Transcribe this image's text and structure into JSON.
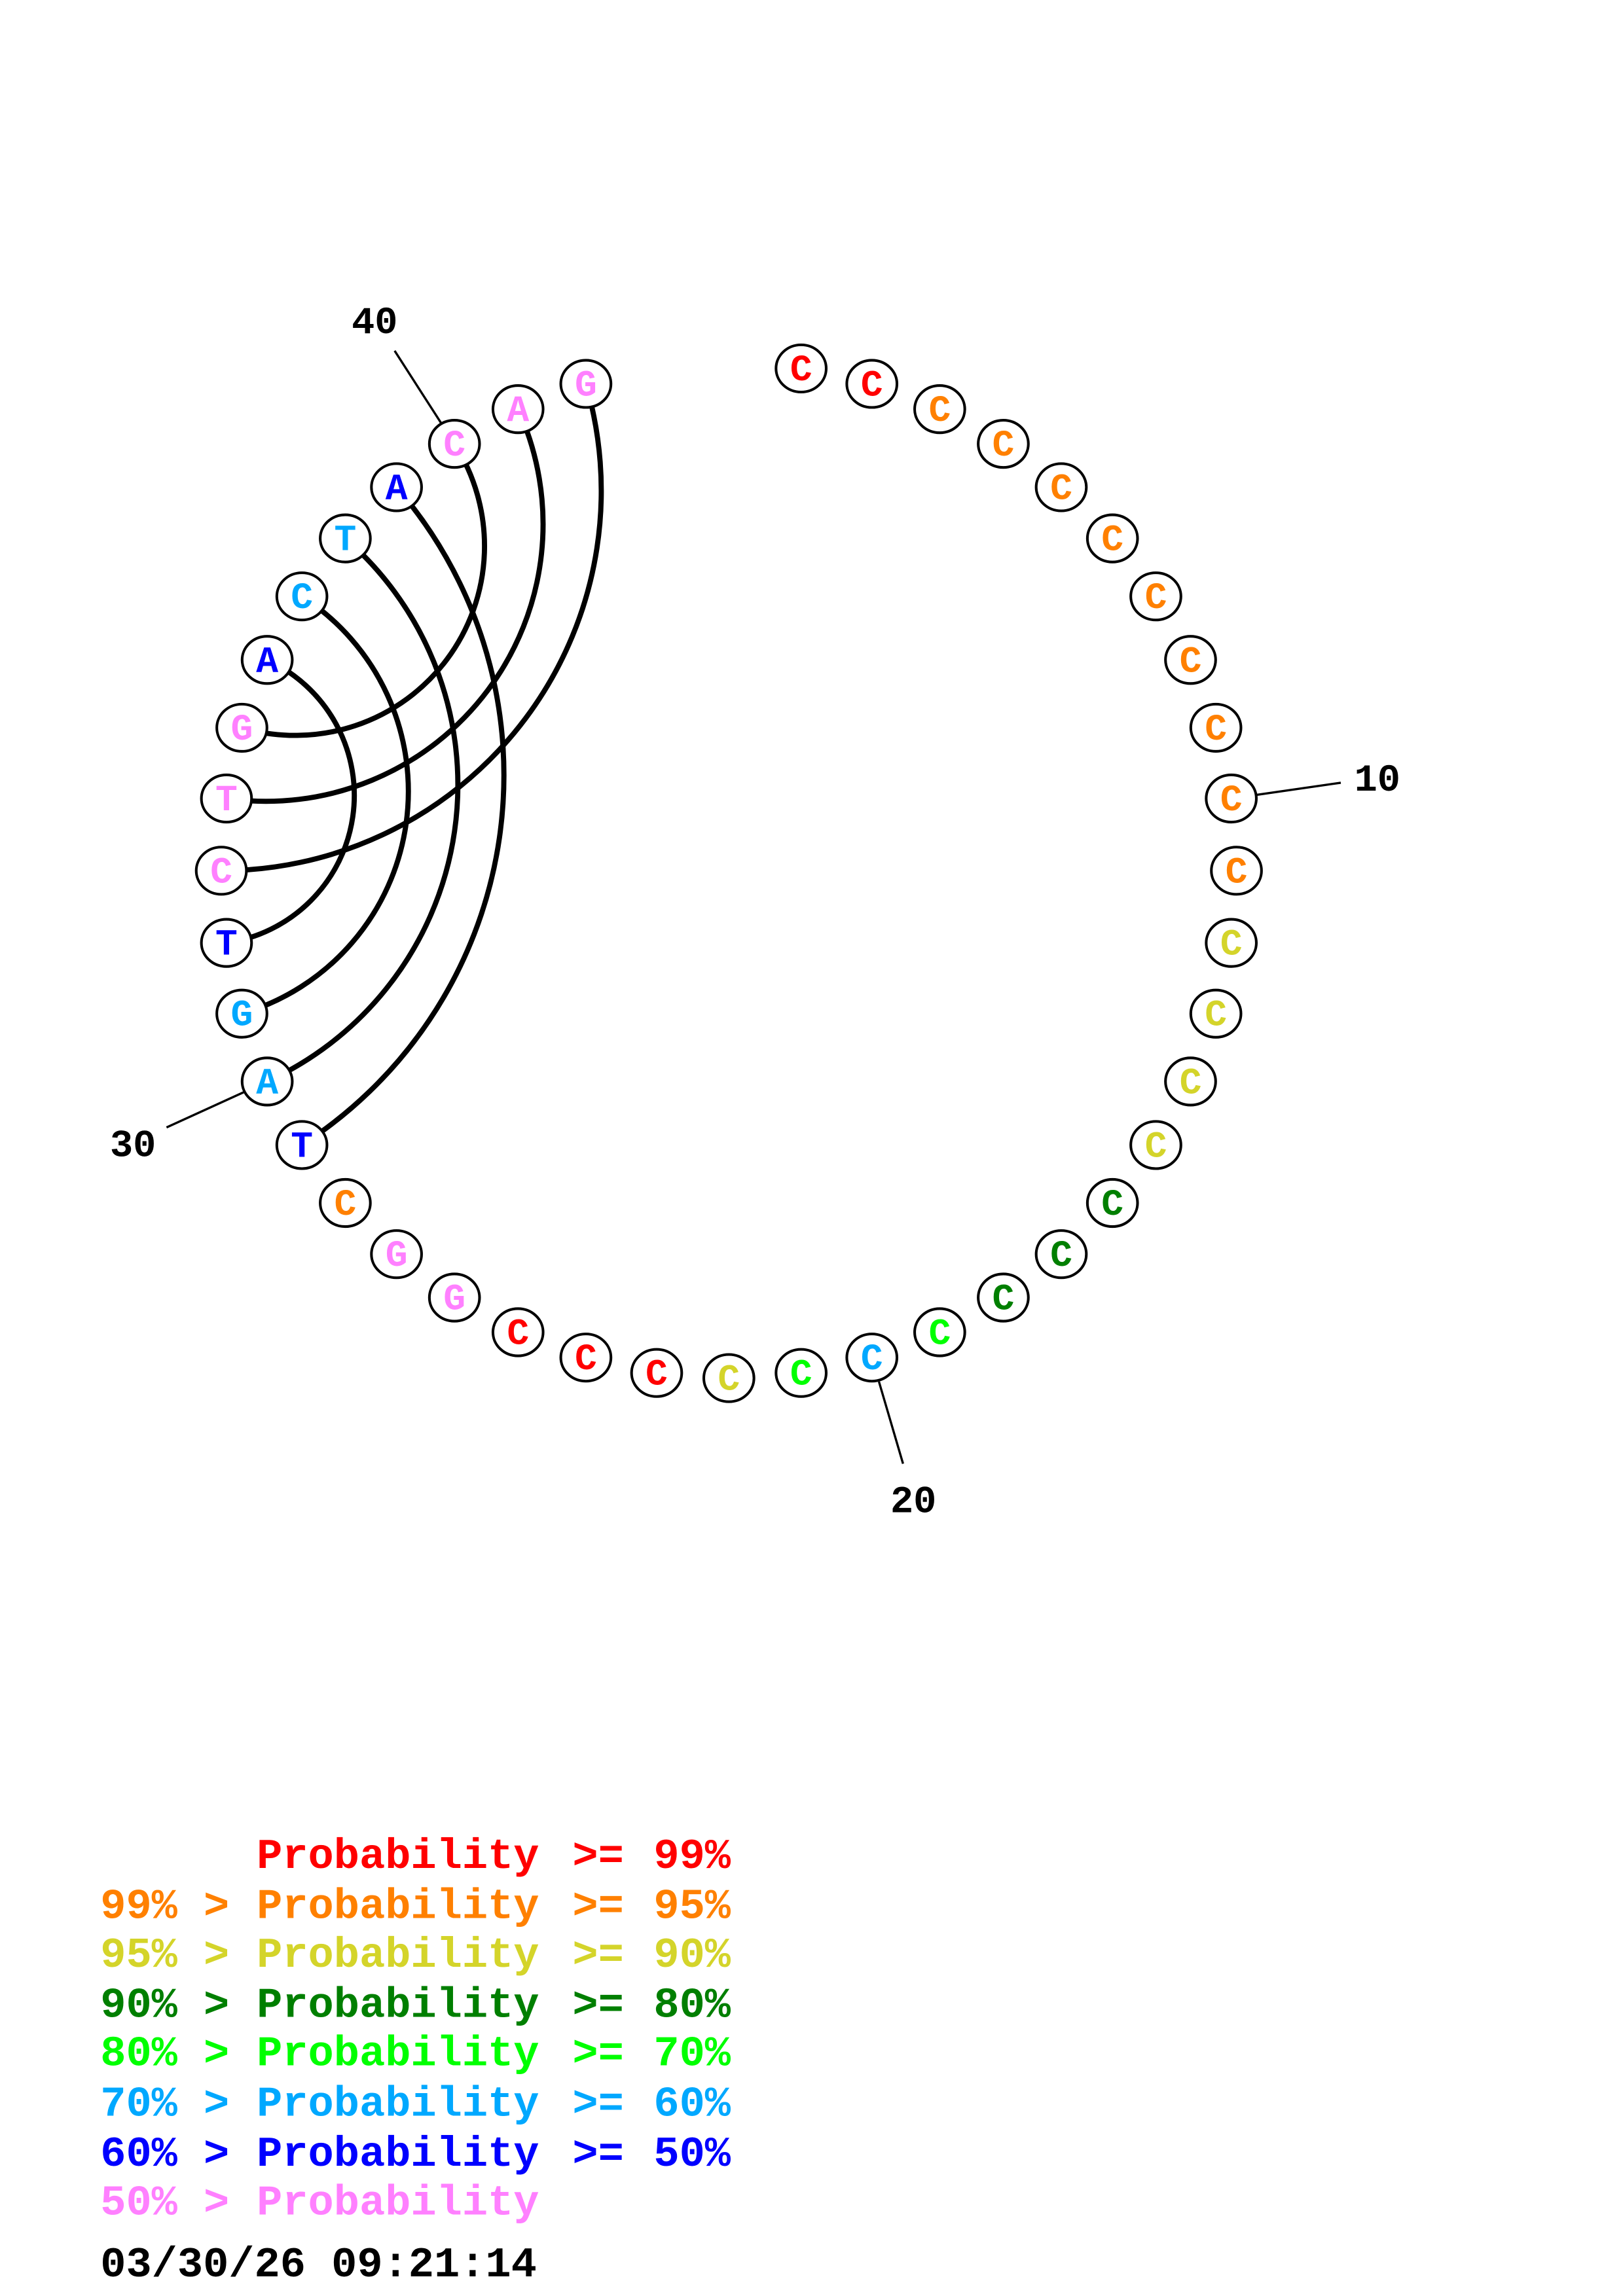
{
  "colors": {
    "p99": "#ff0000",
    "p95": "#ff8000",
    "p90": "#d4d42a",
    "p80": "#007f00",
    "p70": "#00ff00",
    "p60": "#00a8ff",
    "p50": "#0000ff",
    "plow": "#ff80ff"
  },
  "sequence": [
    {
      "base": "C",
      "prob": "p99"
    },
    {
      "base": "C",
      "prob": "p99"
    },
    {
      "base": "C",
      "prob": "p95"
    },
    {
      "base": "C",
      "prob": "p95"
    },
    {
      "base": "C",
      "prob": "p95"
    },
    {
      "base": "C",
      "prob": "p95"
    },
    {
      "base": "C",
      "prob": "p95"
    },
    {
      "base": "C",
      "prob": "p95"
    },
    {
      "base": "C",
      "prob": "p95"
    },
    {
      "base": "C",
      "prob": "p95"
    },
    {
      "base": "C",
      "prob": "p95"
    },
    {
      "base": "C",
      "prob": "p90"
    },
    {
      "base": "C",
      "prob": "p90"
    },
    {
      "base": "C",
      "prob": "p90"
    },
    {
      "base": "C",
      "prob": "p90"
    },
    {
      "base": "C",
      "prob": "p80"
    },
    {
      "base": "C",
      "prob": "p80"
    },
    {
      "base": "C",
      "prob": "p80"
    },
    {
      "base": "C",
      "prob": "p70"
    },
    {
      "base": "C",
      "prob": "p60"
    },
    {
      "base": "C",
      "prob": "p70"
    },
    {
      "base": "C",
      "prob": "p90"
    },
    {
      "base": "C",
      "prob": "p99"
    },
    {
      "base": "C",
      "prob": "p99"
    },
    {
      "base": "C",
      "prob": "p99"
    },
    {
      "base": "G",
      "prob": "plow"
    },
    {
      "base": "G",
      "prob": "plow"
    },
    {
      "base": "C",
      "prob": "p95"
    },
    {
      "base": "T",
      "prob": "p50"
    },
    {
      "base": "A",
      "prob": "p60"
    },
    {
      "base": "G",
      "prob": "p60"
    },
    {
      "base": "T",
      "prob": "p50"
    },
    {
      "base": "C",
      "prob": "plow"
    },
    {
      "base": "T",
      "prob": "plow"
    },
    {
      "base": "G",
      "prob": "plow"
    },
    {
      "base": "A",
      "prob": "p50"
    },
    {
      "base": "C",
      "prob": "p60"
    },
    {
      "base": "T",
      "prob": "p60"
    },
    {
      "base": "A",
      "prob": "p50"
    },
    {
      "base": "C",
      "prob": "plow"
    },
    {
      "base": "A",
      "prob": "plow"
    },
    {
      "base": "G",
      "prob": "plow"
    }
  ],
  "pairs": [
    [
      29,
      39
    ],
    [
      30,
      38
    ],
    [
      31,
      37
    ],
    [
      32,
      36
    ],
    [
      35,
      40
    ],
    [
      34,
      41
    ],
    [
      33,
      42
    ]
  ],
  "position_labels": [
    {
      "pos": 10,
      "text": "10"
    },
    {
      "pos": 20,
      "text": "20"
    },
    {
      "pos": 30,
      "text": "30"
    },
    {
      "pos": 40,
      "text": "40"
    }
  ],
  "legend": [
    {
      "low": "",
      "gt": "",
      "label": "Probability",
      "ge": ">=",
      "high": "99%",
      "color": "p99"
    },
    {
      "low": "99%",
      "gt": ">",
      "label": "Probability",
      "ge": ">=",
      "high": "95%",
      "color": "p95"
    },
    {
      "low": "95%",
      "gt": ">",
      "label": "Probability",
      "ge": ">=",
      "high": "90%",
      "color": "p90"
    },
    {
      "low": "90%",
      "gt": ">",
      "label": "Probability",
      "ge": ">=",
      "high": "80%",
      "color": "p80"
    },
    {
      "low": "80%",
      "gt": ">",
      "label": "Probability",
      "ge": ">=",
      "high": "70%",
      "color": "p70"
    },
    {
      "low": "70%",
      "gt": ">",
      "label": "Probability",
      "ge": ">=",
      "high": "60%",
      "color": "p60"
    },
    {
      "low": "60%",
      "gt": ">",
      "label": "Probability",
      "ge": ">=",
      "high": "50%",
      "color": "p50"
    },
    {
      "low": "50%",
      "gt": ">",
      "label": "Probability",
      "ge": "",
      "high": "",
      "color": "plow"
    }
  ],
  "timestamp": "03/30/26 09:21:14"
}
